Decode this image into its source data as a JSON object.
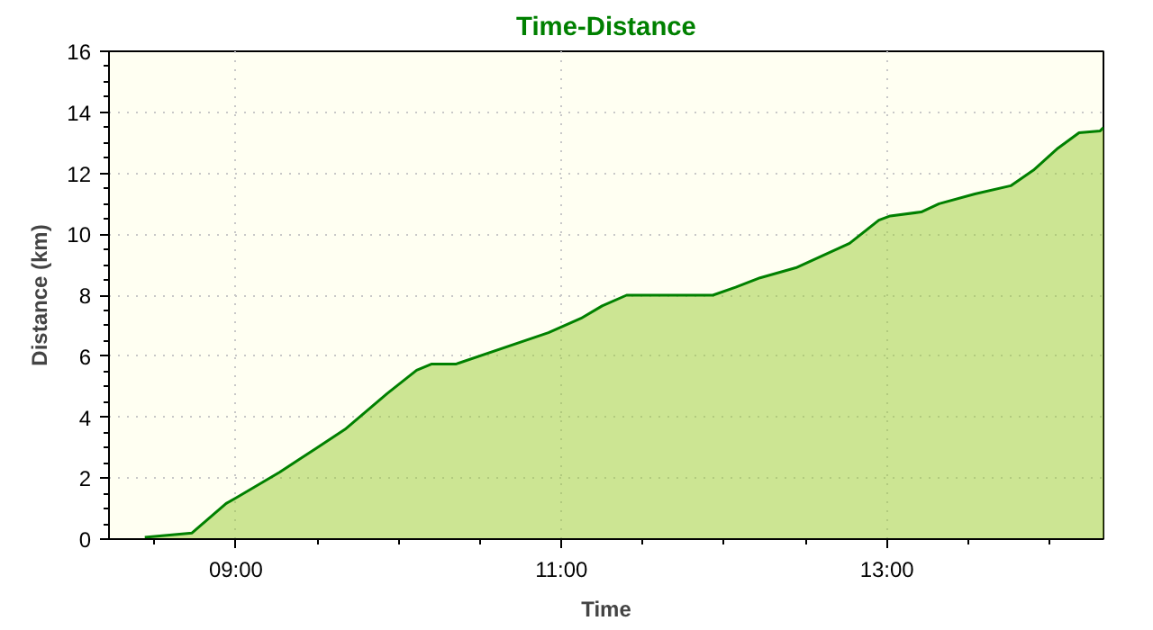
{
  "chart_data": {
    "type": "area",
    "title": "Time-Distance",
    "xlabel": "Time",
    "ylabel": "Distance (km)",
    "x": [
      8.44,
      8.73,
      8.94,
      9.0,
      9.27,
      9.49,
      9.67,
      9.93,
      10.11,
      10.2,
      10.35,
      10.92,
      11.12,
      11.25,
      11.4,
      11.93,
      12.07,
      12.22,
      12.44,
      12.77,
      12.95,
      13.02,
      13.21,
      13.32,
      13.54,
      13.76,
      13.9,
      14.05,
      14.18,
      14.31,
      14.33
    ],
    "series": [
      {
        "color": "#008000",
        "values": [
          0.06,
          0.2,
          1.17,
          1.35,
          2.2,
          2.97,
          3.6,
          4.78,
          5.54,
          5.74,
          5.74,
          6.77,
          7.24,
          7.65,
          8.0,
          8.0,
          8.26,
          8.57,
          8.9,
          9.7,
          10.46,
          10.6,
          10.73,
          11.0,
          11.32,
          11.59,
          12.1,
          12.82,
          13.33,
          13.39,
          13.5
        ]
      }
    ],
    "xlim": [
      8.22,
      14.33
    ],
    "xticks": [
      {
        "value": 9,
        "label": "09:00"
      },
      {
        "value": 11,
        "label": "11:00"
      },
      {
        "value": 13,
        "label": "13:00"
      }
    ],
    "ylim": [
      0,
      16
    ],
    "yticks": [
      0,
      2,
      4,
      6,
      8,
      10,
      12,
      14,
      16
    ],
    "grid": true
  }
}
